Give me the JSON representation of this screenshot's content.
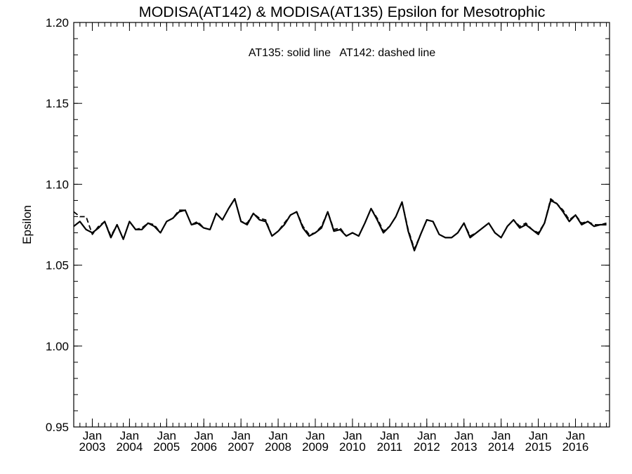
{
  "chart_data": {
    "type": "line",
    "title": "MODISA(AT142) & MODISA(AT135)  Epsilon for Mesotrophic",
    "ylabel": "Epsilon",
    "xlabel": "",
    "annotation": "AT135: solid line   AT142: dashed line",
    "ylim": [
      0.95,
      1.2
    ],
    "xlim": [
      "2002-07",
      "2016-12"
    ],
    "y_ticks": [
      "0.95",
      "1.00",
      "1.05",
      "1.10",
      "1.15",
      "1.20"
    ],
    "x_ticks": [
      {
        "month": "Jan",
        "year": "2003"
      },
      {
        "month": "Jan",
        "year": "2004"
      },
      {
        "month": "Jan",
        "year": "2005"
      },
      {
        "month": "Jan",
        "year": "2006"
      },
      {
        "month": "Jan",
        "year": "2007"
      },
      {
        "month": "Jan",
        "year": "2008"
      },
      {
        "month": "Jan",
        "year": "2009"
      },
      {
        "month": "Jan",
        "year": "2010"
      },
      {
        "month": "Jan",
        "year": "2011"
      },
      {
        "month": "Jan",
        "year": "2012"
      },
      {
        "month": "Jan",
        "year": "2013"
      },
      {
        "month": "Jan",
        "year": "2014"
      },
      {
        "month": "Jan",
        "year": "2015"
      },
      {
        "month": "Jan",
        "year": "2016"
      }
    ],
    "grid": false,
    "series": [
      {
        "style": "solid",
        "x": [
          "2002-07",
          "2002-09",
          "2002-11",
          "2003-01",
          "2003-03",
          "2003-05",
          "2003-07",
          "2003-09",
          "2003-11",
          "2004-01",
          "2004-03",
          "2004-05",
          "2004-07",
          "2004-09",
          "2004-11",
          "2005-01",
          "2005-03",
          "2005-05",
          "2005-07",
          "2005-09",
          "2005-11",
          "2006-01",
          "2006-03",
          "2006-05",
          "2006-07",
          "2006-09",
          "2006-11",
          "2007-01",
          "2007-03",
          "2007-05",
          "2007-07",
          "2007-09",
          "2007-11",
          "2008-01",
          "2008-03",
          "2008-05",
          "2008-07",
          "2008-09",
          "2008-11",
          "2009-01",
          "2009-03",
          "2009-05",
          "2009-07",
          "2009-09",
          "2009-11",
          "2010-01",
          "2010-03",
          "2010-05",
          "2010-07",
          "2010-09",
          "2010-11",
          "2011-01",
          "2011-03",
          "2011-05",
          "2011-07",
          "2011-09",
          "2011-11",
          "2012-01",
          "2012-03",
          "2012-05",
          "2012-07",
          "2012-09",
          "2012-11",
          "2013-01",
          "2013-03",
          "2013-05",
          "2013-07",
          "2013-09",
          "2013-11",
          "2014-01",
          "2014-03",
          "2014-05",
          "2014-07",
          "2014-09",
          "2014-11",
          "2015-01",
          "2015-03",
          "2015-05",
          "2015-07",
          "2015-09",
          "2015-11",
          "2016-01",
          "2016-03",
          "2016-05",
          "2016-07",
          "2016-09",
          "2016-11"
        ],
        "y": [
          1.074,
          1.077,
          1.072,
          1.07,
          1.073,
          1.077,
          1.067,
          1.075,
          1.066,
          1.077,
          1.072,
          1.072,
          1.076,
          1.074,
          1.07,
          1.077,
          1.079,
          1.083,
          1.084,
          1.075,
          1.076,
          1.073,
          1.072,
          1.082,
          1.078,
          1.085,
          1.091,
          1.077,
          1.075,
          1.082,
          1.078,
          1.077,
          1.068,
          1.071,
          1.075,
          1.081,
          1.083,
          1.073,
          1.068,
          1.07,
          1.073,
          1.083,
          1.071,
          1.072,
          1.068,
          1.07,
          1.068,
          1.076,
          1.085,
          1.078,
          1.07,
          1.074,
          1.08,
          1.089,
          1.071,
          1.059,
          1.069,
          1.078,
          1.077,
          1.069,
          1.067,
          1.067,
          1.07,
          1.076,
          1.067,
          1.07,
          1.073,
          1.076,
          1.07,
          1.067,
          1.074,
          1.078,
          1.073,
          1.075,
          1.072,
          1.069,
          1.076,
          1.09,
          1.088,
          1.083,
          1.077,
          1.081,
          1.075,
          1.077,
          1.074,
          1.075,
          1.075
        ]
      },
      {
        "style": "dashed",
        "x": [
          "2002-07",
          "2002-09",
          "2002-11",
          "2003-01",
          "2003-03",
          "2003-05",
          "2003-07",
          "2003-09",
          "2003-11",
          "2004-01",
          "2004-03",
          "2004-05",
          "2004-07",
          "2004-09",
          "2004-11",
          "2005-01",
          "2005-03",
          "2005-05",
          "2005-07",
          "2005-09",
          "2005-11",
          "2006-01",
          "2006-03",
          "2006-05",
          "2006-07",
          "2006-09",
          "2006-11",
          "2007-01",
          "2007-03",
          "2007-05",
          "2007-07",
          "2007-09",
          "2007-11",
          "2008-01",
          "2008-03",
          "2008-05",
          "2008-07",
          "2008-09",
          "2008-11",
          "2009-01",
          "2009-03",
          "2009-05",
          "2009-07",
          "2009-09",
          "2009-11",
          "2010-01",
          "2010-03",
          "2010-05",
          "2010-07",
          "2010-09",
          "2010-11",
          "2011-01",
          "2011-03",
          "2011-05",
          "2011-07",
          "2011-09",
          "2011-11",
          "2012-01",
          "2012-03",
          "2012-05",
          "2012-07",
          "2012-09",
          "2012-11",
          "2013-01",
          "2013-03",
          "2013-05",
          "2013-07",
          "2013-09",
          "2013-11",
          "2014-01",
          "2014-03",
          "2014-05",
          "2014-07",
          "2014-09",
          "2014-11",
          "2015-01",
          "2015-03",
          "2015-05",
          "2015-07",
          "2015-09",
          "2015-11",
          "2016-01",
          "2016-03",
          "2016-05",
          "2016-07",
          "2016-09",
          "2016-11"
        ],
        "y": [
          1.083,
          1.08,
          1.08,
          1.069,
          1.074,
          1.077,
          1.068,
          1.075,
          1.066,
          1.077,
          1.072,
          1.073,
          1.076,
          1.075,
          1.07,
          1.077,
          1.079,
          1.084,
          1.084,
          1.075,
          1.077,
          1.073,
          1.072,
          1.082,
          1.078,
          1.085,
          1.091,
          1.077,
          1.076,
          1.082,
          1.079,
          1.078,
          1.068,
          1.071,
          1.076,
          1.081,
          1.083,
          1.074,
          1.069,
          1.07,
          1.074,
          1.083,
          1.072,
          1.073,
          1.068,
          1.07,
          1.068,
          1.076,
          1.085,
          1.079,
          1.071,
          1.074,
          1.08,
          1.089,
          1.072,
          1.06,
          1.069,
          1.078,
          1.077,
          1.069,
          1.067,
          1.067,
          1.07,
          1.076,
          1.068,
          1.07,
          1.073,
          1.076,
          1.07,
          1.067,
          1.074,
          1.078,
          1.074,
          1.076,
          1.072,
          1.07,
          1.076,
          1.091,
          1.088,
          1.084,
          1.078,
          1.081,
          1.076,
          1.077,
          1.075,
          1.075,
          1.076
        ]
      }
    ]
  }
}
